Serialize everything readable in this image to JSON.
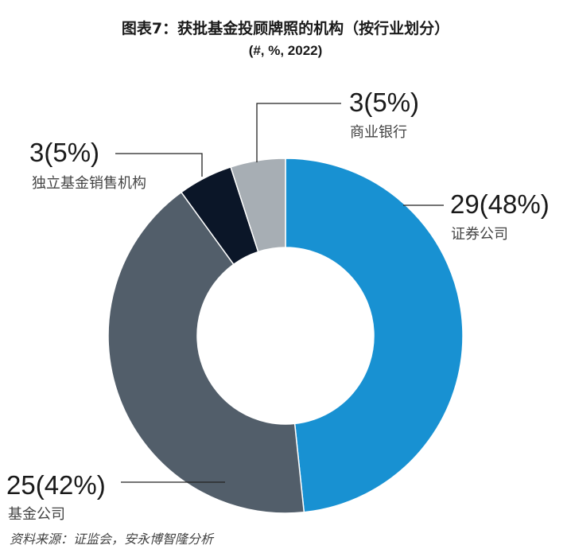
{
  "title": "图表7：获批基金投顾牌照的机构（按行业划分）",
  "subtitle": "(#, %, 2022)",
  "source": "资料来源：证监会，安永博智隆分析",
  "chart_data": {
    "type": "pie",
    "donut": true,
    "title": "图表7：获批基金投顾牌照的机构（按行业划分）",
    "subtitle": "(#, %, 2022)",
    "slices": [
      {
        "category": "证券公司",
        "value": 29,
        "label": "29(48%)",
        "color": "#1891d2"
      },
      {
        "category": "基金公司",
        "value": 25,
        "label": "25(42%)",
        "color": "#525e6a"
      },
      {
        "category": "独立基金销售机构",
        "value": 3,
        "label": "3(5%)",
        "color": "#0b1628"
      },
      {
        "category": "商业银行",
        "value": 3,
        "label": "3(5%)",
        "color": "#a7aeb4"
      }
    ]
  }
}
